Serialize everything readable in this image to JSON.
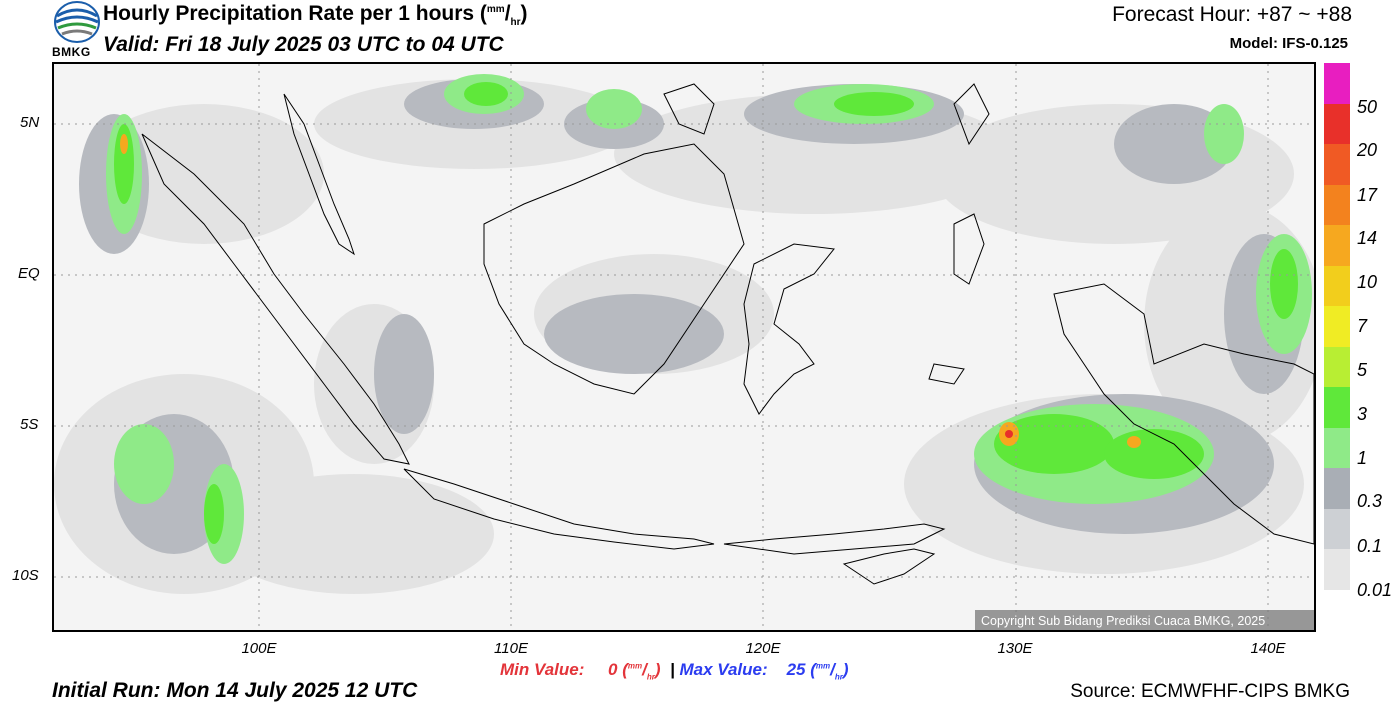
{
  "header": {
    "logo_text": "BMKG",
    "title": "Hourly Precipitation Rate per 1 hours (",
    "title_unit_num": "mm",
    "title_unit_sep": "/",
    "title_unit_den": "hr",
    "title_close": ")",
    "valid": "Valid: Fri 18 July 2025 03 UTC to 04 UTC",
    "forecast_hour": "Forecast Hour: +87 ~ +88",
    "model": "Model: IFS-0.125"
  },
  "axes": {
    "lat_labels": [
      "5N",
      "EQ",
      "5S",
      "10S"
    ],
    "lon_labels": [
      "100E",
      "110E",
      "120E",
      "130E",
      "140E"
    ]
  },
  "colorbar": {
    "labels": [
      "50",
      "20",
      "17",
      "14",
      "10",
      "7",
      "5",
      "3",
      "1",
      "0.3",
      "0.1",
      "0.01"
    ],
    "colors": [
      "#e81ec0",
      "#e8302a",
      "#f05a24",
      "#f3821e",
      "#f6a81f",
      "#f2ce1c",
      "#f0ec24",
      "#b8ee33",
      "#5fe83a",
      "#8fea88",
      "#a9aeb5",
      "#cdd0d4",
      "#e6e6e6"
    ]
  },
  "copyright": "Copyright Sub Bidang Prediksi Cuaca BMKG, 2025",
  "footer": {
    "min_label": "Min Value:",
    "min_value": "0",
    "max_label": "Max Value:",
    "max_value": "25",
    "unit_num": "mm",
    "unit_den": "hr",
    "initial_run": "Initial Run: Mon 14 July 2025 12 UTC",
    "source": "Source: ECMWFHF-CIPS BMKG"
  }
}
